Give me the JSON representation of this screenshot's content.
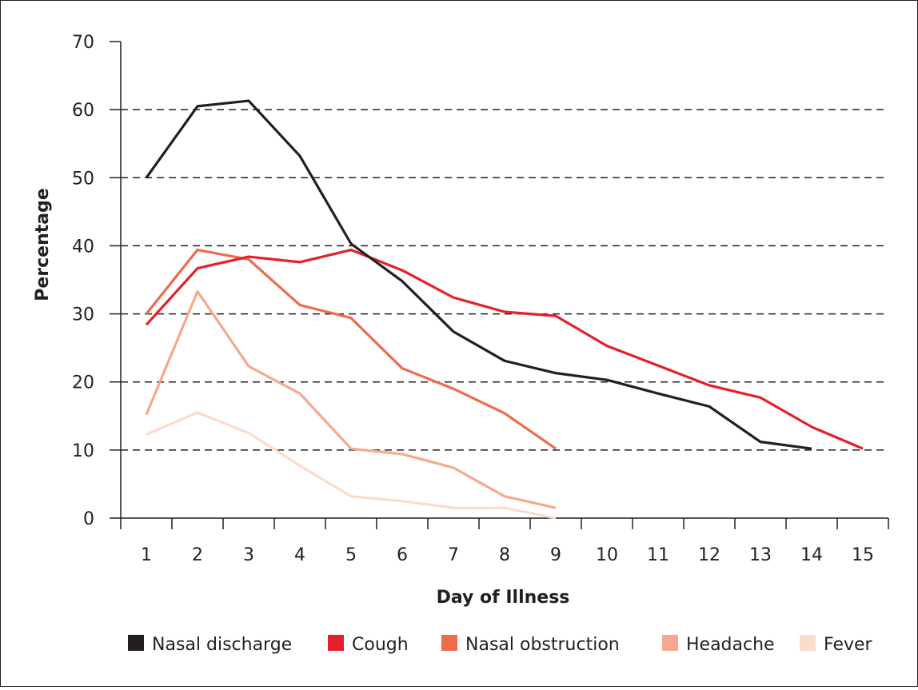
{
  "chart_data": {
    "type": "line",
    "title": "",
    "xlabel": "Day of Illness",
    "ylabel": "Percentage",
    "ylim": [
      0,
      70
    ],
    "yticks": [
      0,
      10,
      20,
      30,
      40,
      50,
      60,
      70
    ],
    "x": [
      1,
      2,
      3,
      4,
      5,
      6,
      7,
      8,
      9,
      10,
      11,
      12,
      13,
      14,
      15
    ],
    "grid": "horizontal dashed",
    "legend_placement": "bottom",
    "series": [
      {
        "name": "Nasal discharge",
        "color": "#231f20",
        "values": [
          50,
          60.5,
          61.3,
          53.2,
          40.3,
          34.8,
          27.4,
          23.1,
          21.3,
          20.3,
          18.3,
          16.4,
          11.2,
          10.2,
          null
        ]
      },
      {
        "name": "Cough",
        "color": "#e4202a",
        "values": [
          28.4,
          36.7,
          38.4,
          37.6,
          39.4,
          36.4,
          32.4,
          30.3,
          29.7,
          25.3,
          22.4,
          19.5,
          17.7,
          13.4,
          10.2
        ]
      },
      {
        "name": "Nasal obstruction",
        "color": "#ee6b4e",
        "values": [
          30,
          39.4,
          38,
          31.3,
          29.4,
          22,
          19,
          15.4,
          10.2,
          null,
          null,
          null,
          null,
          null,
          null
        ]
      },
      {
        "name": "Headache",
        "color": "#f4a98f",
        "values": [
          15.2,
          33.3,
          22.3,
          18.3,
          10.2,
          9.4,
          7.4,
          3.2,
          1.5,
          null,
          null,
          null,
          null,
          null,
          null
        ]
      },
      {
        "name": "Fever",
        "color": "#fbdccc",
        "values": [
          12.3,
          15.5,
          12.5,
          7.7,
          3.2,
          2.5,
          1.5,
          1.5,
          0,
          null,
          null,
          null,
          null,
          null,
          null
        ]
      }
    ]
  }
}
